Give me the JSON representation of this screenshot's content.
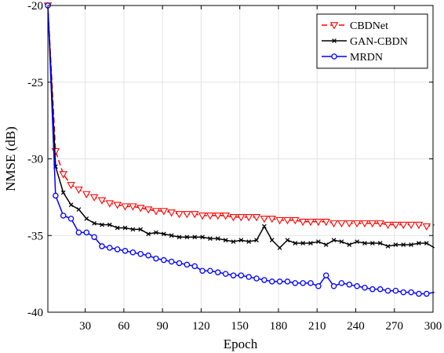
{
  "chart_data": {
    "type": "line",
    "title": "",
    "xlabel": "Epoch",
    "ylabel": "NMSE (dB)",
    "xlim": [
      1,
      300
    ],
    "ylim": [
      -40,
      -20
    ],
    "xticks": [
      30,
      60,
      90,
      120,
      150,
      180,
      210,
      240,
      270,
      300
    ],
    "yticks": [
      -20,
      -25,
      -30,
      -35,
      -40
    ],
    "grid": true,
    "legend_position": "top-right",
    "series": [
      {
        "name": "CBDNet",
        "color": "#ff0000",
        "line_style": "dashed",
        "marker": "triangle-down-open",
        "x": [
          1,
          7,
          13,
          19,
          25,
          31,
          37,
          43,
          49,
          55,
          61,
          67,
          73,
          79,
          85,
          91,
          97,
          103,
          109,
          115,
          121,
          127,
          133,
          139,
          145,
          151,
          157,
          163,
          169,
          175,
          181,
          187,
          193,
          199,
          205,
          211,
          217,
          223,
          229,
          235,
          241,
          247,
          253,
          259,
          265,
          271,
          277,
          283,
          289,
          295,
          301
        ],
        "y": [
          -20,
          -29.5,
          -31.0,
          -31.7,
          -32.0,
          -32.3,
          -32.5,
          -32.7,
          -32.9,
          -33.0,
          -33.1,
          -33.1,
          -33.2,
          -33.3,
          -33.4,
          -33.4,
          -33.5,
          -33.6,
          -33.6,
          -33.6,
          -33.7,
          -33.7,
          -33.7,
          -33.7,
          -33.8,
          -33.8,
          -33.8,
          -33.8,
          -33.9,
          -33.9,
          -34.0,
          -34.0,
          -34.0,
          -34.1,
          -34.1,
          -34.1,
          -34.1,
          -34.2,
          -34.2,
          -34.2,
          -34.2,
          -34.2,
          -34.2,
          -34.2,
          -34.3,
          -34.3,
          -34.3,
          -34.3,
          -34.3,
          -34.4,
          -34.3
        ]
      },
      {
        "name": "GAN-CBDN",
        "color": "#000000",
        "line_style": "solid",
        "marker": "x",
        "x": [
          1,
          7,
          13,
          19,
          25,
          31,
          37,
          43,
          49,
          55,
          61,
          67,
          73,
          79,
          85,
          91,
          97,
          103,
          109,
          115,
          121,
          127,
          133,
          139,
          145,
          151,
          157,
          163,
          169,
          175,
          181,
          187,
          193,
          199,
          205,
          211,
          217,
          223,
          229,
          235,
          241,
          247,
          253,
          259,
          265,
          271,
          277,
          283,
          289,
          295,
          301
        ],
        "y": [
          -20,
          -30.5,
          -32.2,
          -33.0,
          -33.3,
          -33.9,
          -34.2,
          -34.3,
          -34.3,
          -34.5,
          -34.5,
          -34.6,
          -34.6,
          -34.9,
          -34.8,
          -34.9,
          -35.0,
          -35.1,
          -35.1,
          -35.1,
          -35.1,
          -35.2,
          -35.2,
          -35.3,
          -35.4,
          -35.3,
          -35.4,
          -35.3,
          -34.4,
          -35.3,
          -35.8,
          -35.3,
          -35.5,
          -35.5,
          -35.5,
          -35.4,
          -35.6,
          -35.3,
          -35.4,
          -35.6,
          -35.4,
          -35.5,
          -35.5,
          -35.5,
          -35.7,
          -35.6,
          -35.6,
          -35.6,
          -35.5,
          -35.5,
          -35.8
        ]
      },
      {
        "name": "MRDN",
        "color": "#0000ff",
        "line_style": "solid",
        "marker": "circle-open",
        "x": [
          1,
          7,
          13,
          19,
          25,
          31,
          37,
          43,
          49,
          55,
          61,
          67,
          73,
          79,
          85,
          91,
          97,
          103,
          109,
          115,
          121,
          127,
          133,
          139,
          145,
          151,
          157,
          163,
          169,
          175,
          181,
          187,
          193,
          199,
          205,
          211,
          217,
          223,
          229,
          235,
          241,
          247,
          253,
          259,
          265,
          271,
          277,
          283,
          289,
          295,
          301
        ],
        "y": [
          -20,
          -32.4,
          -33.7,
          -33.9,
          -34.8,
          -34.8,
          -35.1,
          -35.7,
          -35.8,
          -35.9,
          -36.0,
          -36.1,
          -36.2,
          -36.3,
          -36.5,
          -36.6,
          -36.7,
          -36.8,
          -36.9,
          -37.0,
          -37.3,
          -37.3,
          -37.4,
          -37.5,
          -37.6,
          -37.6,
          -37.7,
          -37.8,
          -37.9,
          -38.0,
          -38.0,
          -38.0,
          -38.1,
          -38.1,
          -38.1,
          -38.3,
          -37.6,
          -38.3,
          -38.1,
          -38.2,
          -38.3,
          -38.4,
          -38.5,
          -38.5,
          -38.6,
          -38.6,
          -38.7,
          -38.7,
          -38.8,
          -38.8,
          -38.7
        ]
      }
    ]
  }
}
